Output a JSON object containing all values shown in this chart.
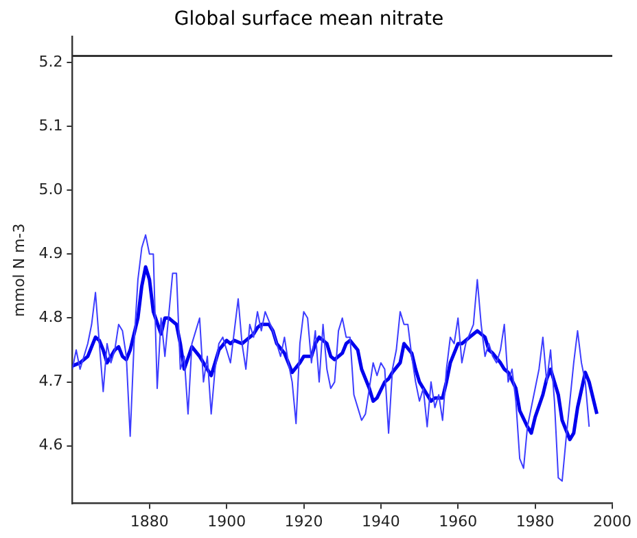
{
  "chart_data": {
    "type": "line",
    "title": "Global surface mean nitrate",
    "ylabel": "mmol N m-3",
    "xlim": [
      1860,
      2000
    ],
    "xticks": [
      1880,
      1900,
      1920,
      1940,
      1960,
      1980,
      2000
    ],
    "ylim": [
      4.51,
      5.24
    ],
    "yticks": [
      4.6,
      4.7,
      4.8,
      4.9,
      {
        "value": 5,
        "label": "5.0"
      },
      5.1,
      5.2
    ],
    "grid": false,
    "legend": false,
    "marker": "none",
    "line_style": "solid",
    "ref_lines": [
      {
        "axis": "y",
        "value": 5.21,
        "color": "#333333"
      }
    ],
    "series": [
      {
        "color": "#3c3cff",
        "x": [
          1860,
          1861,
          1862,
          1863,
          1864,
          1865,
          1866,
          1867,
          1868,
          1869,
          1870,
          1871,
          1872,
          1873,
          1874,
          1875,
          1876,
          1877,
          1878,
          1879,
          1880,
          1881,
          1882,
          1883,
          1884,
          1886,
          1887,
          1888,
          1889,
          1890,
          1891,
          1892,
          1893,
          1894,
          1895,
          1896,
          1897,
          1898,
          1899,
          1900,
          1901,
          1902,
          1903,
          1904,
          1905,
          1906,
          1907,
          1908,
          1909,
          1910,
          1912,
          1913,
          1914,
          1915,
          1916,
          1917,
          1918,
          1919,
          1920,
          1921,
          1922,
          1923,
          1924,
          1925,
          1926,
          1927,
          1928,
          1929,
          1930,
          1931,
          1932,
          1933,
          1934,
          1935,
          1936,
          1938,
          1939,
          1940,
          1941,
          1942,
          1943,
          1944,
          1945,
          1946,
          1947,
          1948,
          1949,
          1950,
          1951,
          1952,
          1953,
          1954,
          1955,
          1956,
          1957,
          1958,
          1959,
          1960,
          1961,
          1962,
          1964,
          1965,
          1966,
          1967,
          1968,
          1969,
          1970,
          1971,
          1972,
          1973,
          1974,
          1975,
          1976,
          1977,
          1978,
          1979,
          1980,
          1981,
          1982,
          1983,
          1984,
          1985,
          1986,
          1987,
          1988,
          1990,
          1991,
          1992,
          1993,
          1994
        ],
        "values": [
          4.72,
          4.75,
          4.72,
          4.74,
          4.76,
          4.79,
          4.84,
          4.76,
          4.685,
          4.76,
          4.73,
          4.75,
          4.79,
          4.78,
          4.74,
          4.615,
          4.76,
          4.86,
          4.91,
          4.93,
          4.9,
          4.9,
          4.69,
          4.8,
          4.74,
          4.87,
          4.87,
          4.72,
          4.74,
          4.65,
          4.76,
          4.78,
          4.8,
          4.7,
          4.74,
          4.65,
          4.72,
          4.76,
          4.77,
          4.75,
          4.73,
          4.78,
          4.83,
          4.76,
          4.72,
          4.79,
          4.77,
          4.81,
          4.78,
          4.81,
          4.78,
          4.76,
          4.74,
          4.77,
          4.73,
          4.7,
          4.635,
          4.76,
          4.81,
          4.8,
          4.73,
          4.78,
          4.7,
          4.79,
          4.72,
          4.69,
          4.7,
          4.78,
          4.8,
          4.77,
          4.77,
          4.68,
          4.66,
          4.64,
          4.65,
          4.73,
          4.71,
          4.73,
          4.72,
          4.62,
          4.72,
          4.75,
          4.81,
          4.79,
          4.79,
          4.74,
          4.7,
          4.67,
          4.69,
          4.63,
          4.7,
          4.66,
          4.68,
          4.64,
          4.72,
          4.77,
          4.76,
          4.8,
          4.73,
          4.76,
          4.79,
          4.86,
          4.79,
          4.74,
          4.76,
          4.74,
          4.73,
          4.75,
          4.79,
          4.7,
          4.72,
          4.67,
          4.58,
          4.565,
          4.63,
          4.66,
          4.69,
          4.72,
          4.77,
          4.7,
          4.75,
          4.67,
          4.55,
          4.545,
          4.61,
          4.73,
          4.78,
          4.73,
          4.7,
          4.63
        ]
      },
      {
        "color": "#0000ee",
        "x": [
          1860,
          1862,
          1864,
          1866,
          1867,
          1868,
          1869,
          1871,
          1872,
          1873,
          1874,
          1875,
          1877,
          1878,
          1879,
          1880,
          1881,
          1883,
          1884,
          1885,
          1887,
          1888,
          1889,
          1891,
          1893,
          1894,
          1896,
          1897,
          1898,
          1900,
          1901,
          1902,
          1904,
          1905,
          1907,
          1908,
          1909,
          1911,
          1912,
          1913,
          1915,
          1916,
          1917,
          1919,
          1920,
          1922,
          1923,
          1924,
          1926,
          1927,
          1928,
          1930,
          1931,
          1932,
          1934,
          1935,
          1937,
          1938,
          1939,
          1941,
          1942,
          1943,
          1945,
          1946,
          1948,
          1949,
          1950,
          1952,
          1953,
          1954,
          1956,
          1957,
          1958,
          1960,
          1961,
          1963,
          1964,
          1965,
          1967,
          1968,
          1969,
          1971,
          1972,
          1973,
          1975,
          1976,
          1978,
          1979,
          1980,
          1982,
          1983,
          1984,
          1986,
          1987,
          1989,
          1990,
          1991,
          1993,
          1994,
          1996
        ],
        "values": [
          4.725,
          4.73,
          4.74,
          4.77,
          4.765,
          4.75,
          4.73,
          4.75,
          4.755,
          4.74,
          4.735,
          4.75,
          4.8,
          4.85,
          4.88,
          4.86,
          4.81,
          4.775,
          4.8,
          4.8,
          4.79,
          4.76,
          4.72,
          4.755,
          4.74,
          4.73,
          4.71,
          4.73,
          4.75,
          4.765,
          4.76,
          4.765,
          4.76,
          4.765,
          4.775,
          4.785,
          4.79,
          4.79,
          4.78,
          4.76,
          4.745,
          4.73,
          4.715,
          4.73,
          4.74,
          4.74,
          4.76,
          4.77,
          4.76,
          4.74,
          4.735,
          4.745,
          4.76,
          4.765,
          4.75,
          4.72,
          4.69,
          4.67,
          4.675,
          4.7,
          4.705,
          4.715,
          4.73,
          4.76,
          4.745,
          4.72,
          4.7,
          4.68,
          4.67,
          4.675,
          4.675,
          4.7,
          4.73,
          4.76,
          4.76,
          4.77,
          4.775,
          4.78,
          4.77,
          4.75,
          4.745,
          4.73,
          4.72,
          4.715,
          4.69,
          4.655,
          4.63,
          4.62,
          4.645,
          4.68,
          4.705,
          4.72,
          4.68,
          4.64,
          4.61,
          4.62,
          4.66,
          4.715,
          4.7,
          4.65
        ]
      }
    ]
  }
}
